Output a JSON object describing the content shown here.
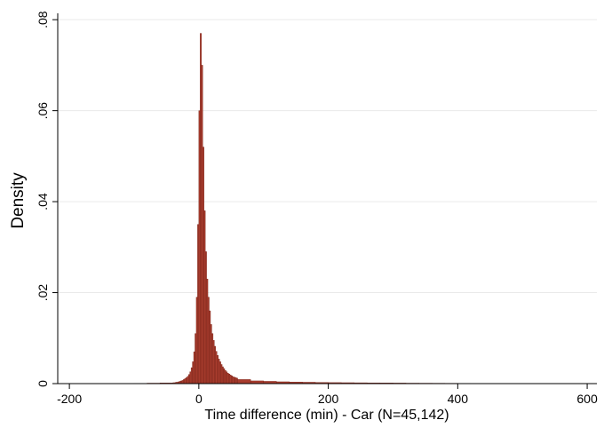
{
  "chart_data": {
    "type": "histogram",
    "xlabel": "Time difference (min) - Car (N=45,142)",
    "ylabel": "Density",
    "color": "#a83c2e",
    "edgecolor": "#7a2418",
    "grid": true,
    "xlim": [
      -218,
      615
    ],
    "ylim": [
      0,
      0.0814
    ],
    "xticks": [
      -200,
      0,
      200,
      400,
      600
    ],
    "yticks": [
      0,
      {
        "value": 0.02,
        "label": ".02"
      },
      {
        "value": 0.04,
        "label": ".04"
      },
      {
        "value": 0.06,
        "label": ".06"
      },
      {
        "value": 0.08,
        "label": ".08"
      }
    ],
    "bins": [
      -200,
      -180,
      -160,
      -140,
      -120,
      -100,
      -80,
      -60,
      -40,
      -38,
      -36,
      -34,
      -32,
      -30,
      -28,
      -26,
      -24,
      -22,
      -20,
      -18,
      -16,
      -14,
      -12,
      -10,
      -8,
      -6,
      -4,
      -2,
      0,
      2,
      4,
      6,
      8,
      10,
      12,
      14,
      16,
      18,
      20,
      22,
      24,
      26,
      28,
      30,
      32,
      34,
      36,
      38,
      40,
      42,
      44,
      46,
      48,
      50,
      52,
      54,
      56,
      58,
      60,
      80,
      100,
      120,
      140,
      160,
      180,
      200,
      220,
      240,
      260,
      280,
      300,
      320,
      340,
      360,
      380,
      400,
      420,
      440,
      460,
      480,
      500,
      520,
      540,
      560,
      580,
      600
    ],
    "counts": [
      2e-05,
      2e-05,
      3e-05,
      3e-05,
      5e-05,
      6e-05,
      0.0001,
      0.00015,
      0.0002,
      0.0002,
      0.0003,
      0.0003,
      0.0004,
      0.0005,
      0.0006,
      0.0007,
      0.0009,
      0.0011,
      0.0013,
      0.0016,
      0.002,
      0.0026,
      0.0035,
      0.0048,
      0.007,
      0.011,
      0.019,
      0.035,
      0.06,
      0.077,
      0.07,
      0.052,
      0.038,
      0.029,
      0.023,
      0.019,
      0.016,
      0.013,
      0.011,
      0.0095,
      0.0082,
      0.0071,
      0.0062,
      0.0054,
      0.0048,
      0.0042,
      0.0037,
      0.0033,
      0.0029,
      0.0026,
      0.0023,
      0.0021,
      0.0019,
      0.0017,
      0.0015,
      0.0014,
      0.0013,
      0.0012,
      0.0009,
      0.0006,
      0.0005,
      0.0004,
      0.00035,
      0.0003,
      0.00026,
      0.00022,
      0.0002,
      0.00018,
      0.00016,
      0.00014,
      0.00012,
      0.0001,
      9e-05,
      8e-05,
      7e-05,
      6e-05,
      5e-05,
      5e-05,
      4e-05,
      4e-05,
      3e-05,
      3e-05,
      3e-05,
      2e-05,
      2e-05
    ]
  }
}
